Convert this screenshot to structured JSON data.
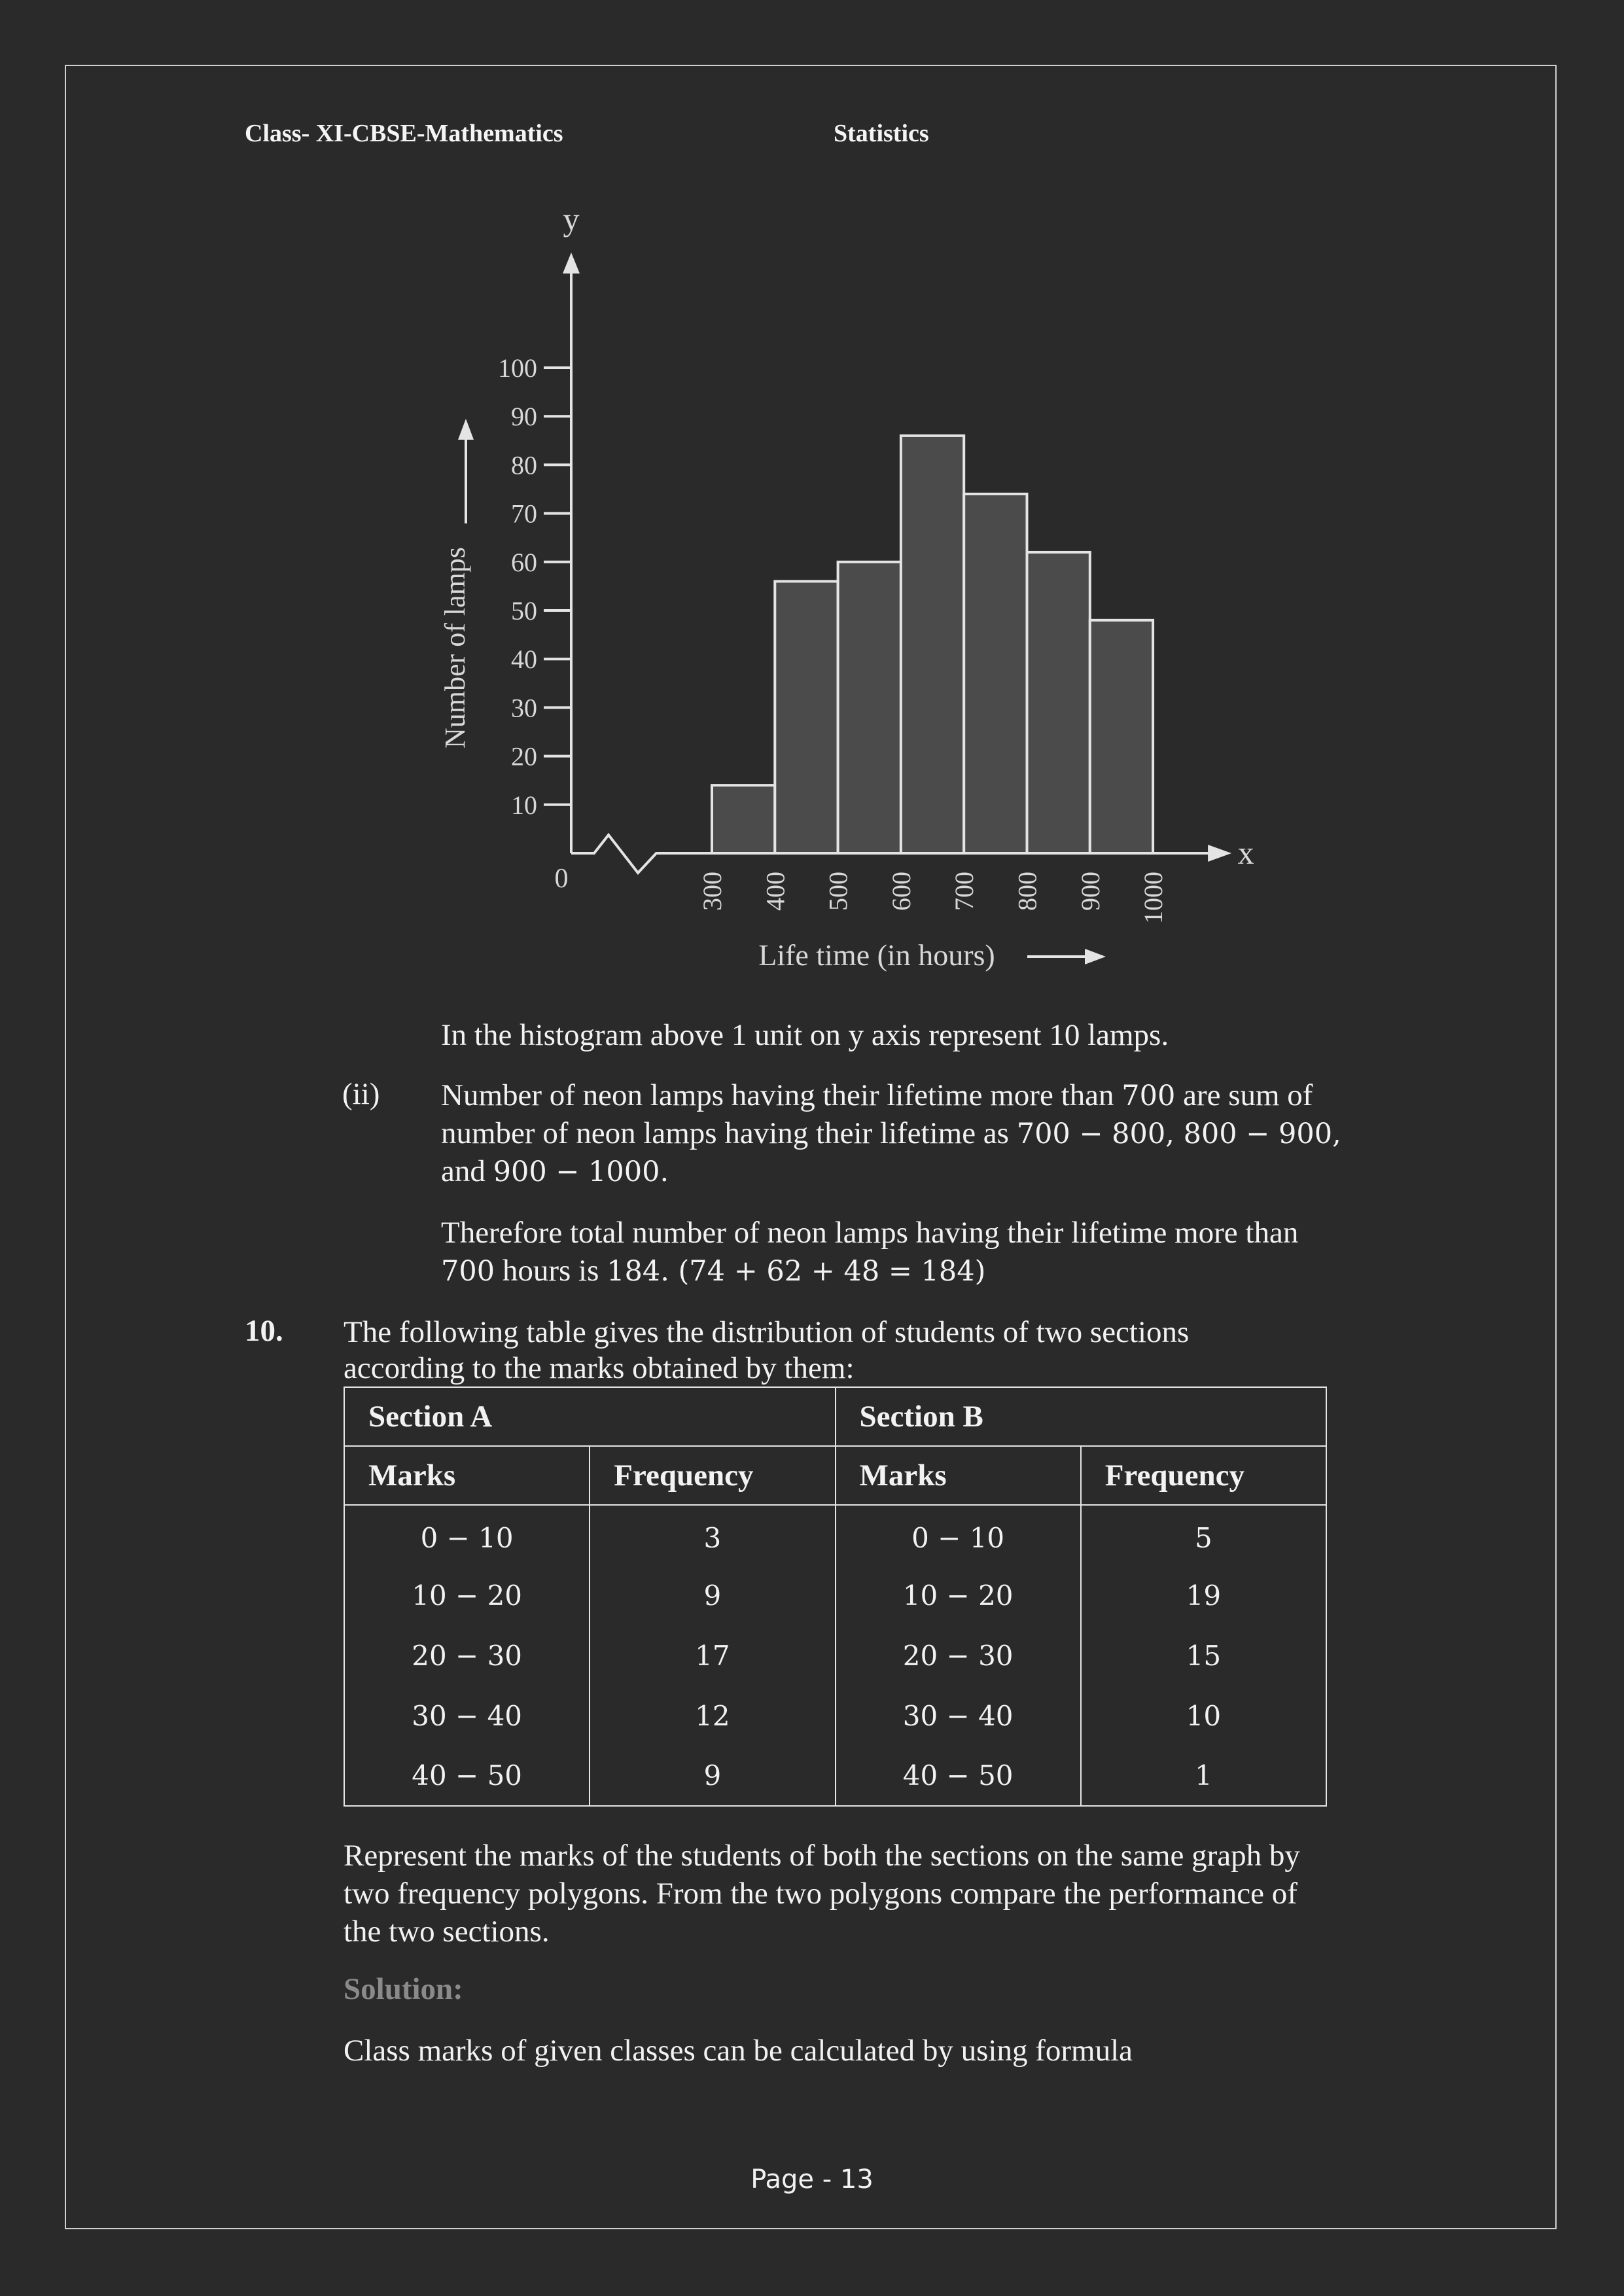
{
  "header": {
    "left": "Class- XI-CBSE-Mathematics",
    "center": "Statistics"
  },
  "chart_data": {
    "type": "bar",
    "y_axis_letter": "y",
    "x_axis_letter": "x",
    "origin_label": "0",
    "ylabel": "Number of lamps",
    "xlabel": "Life time (in hours)",
    "yticks": [
      10,
      20,
      30,
      40,
      50,
      60,
      70,
      80,
      90,
      100
    ],
    "xticks": [
      "300",
      "400",
      "500",
      "600",
      "700",
      "800",
      "900",
      "1000"
    ],
    "bins": [
      [
        300,
        400
      ],
      [
        400,
        500
      ],
      [
        500,
        600
      ],
      [
        600,
        700
      ],
      [
        700,
        800
      ],
      [
        800,
        900
      ],
      [
        900,
        1000
      ]
    ],
    "values": [
      14,
      56,
      60,
      86,
      74,
      62,
      48
    ],
    "ylim": [
      0,
      110
    ],
    "grid": false,
    "axis_break": true
  },
  "text": {
    "histogram_note": "In the histogram above 1 unit on y axis represent 10 lamps.",
    "part_ii_label": "(ii)",
    "part_ii_line1_a": "Number of neon lamps having their lifetime more than ",
    "part_ii_line1_num": "700",
    "part_ii_line1_b": " are sum of",
    "part_ii_line2_a": "number of neon lamps having their lifetime as ",
    "part_ii_line2_num": "700 − 800, 800 − 900,",
    "part_ii_line3_a": "and ",
    "part_ii_line3_num": "900 − 1000.",
    "therefore_line1": "Therefore total number of neon lamps having their lifetime more than",
    "therefore_line2_num": "700",
    "therefore_line2_a": " hours is ",
    "therefore_line2_num2": "184. (74 + 62 + 48 = 184)",
    "q_number": "10.",
    "q_line1": "The following table gives the distribution of students of two sections",
    "q_line2": "according to the marks obtained by them:",
    "represent_line1": "Represent the marks of the students of both the sections on the same graph by",
    "represent_line2": "two frequency polygons. From the two polygons compare the performance of",
    "represent_line3": "the two sections.",
    "solution_label": "Solution:",
    "class_marks_line": "Class marks of given classes can be calculated by using formula"
  },
  "table": {
    "section_a": "Section A",
    "section_b": "Section B",
    "col_marks": "Marks",
    "col_frequency": "Frequency",
    "rows": [
      {
        "a_marks": "0 − 10",
        "a_freq": "3",
        "b_marks": "0 − 10",
        "b_freq": "5"
      },
      {
        "a_marks": "10 − 20",
        "a_freq": "9",
        "b_marks": "10 − 20",
        "b_freq": "19"
      },
      {
        "a_marks": "20 − 30",
        "a_freq": "17",
        "b_marks": "20 − 30",
        "b_freq": "15"
      },
      {
        "a_marks": "30 − 40",
        "a_freq": "12",
        "b_marks": "30 − 40",
        "b_freq": "10"
      },
      {
        "a_marks": "40 − 50",
        "a_freq": "9",
        "b_marks": "40 − 50",
        "b_freq": "1"
      }
    ]
  },
  "footer": {
    "page": "Page - 13"
  }
}
